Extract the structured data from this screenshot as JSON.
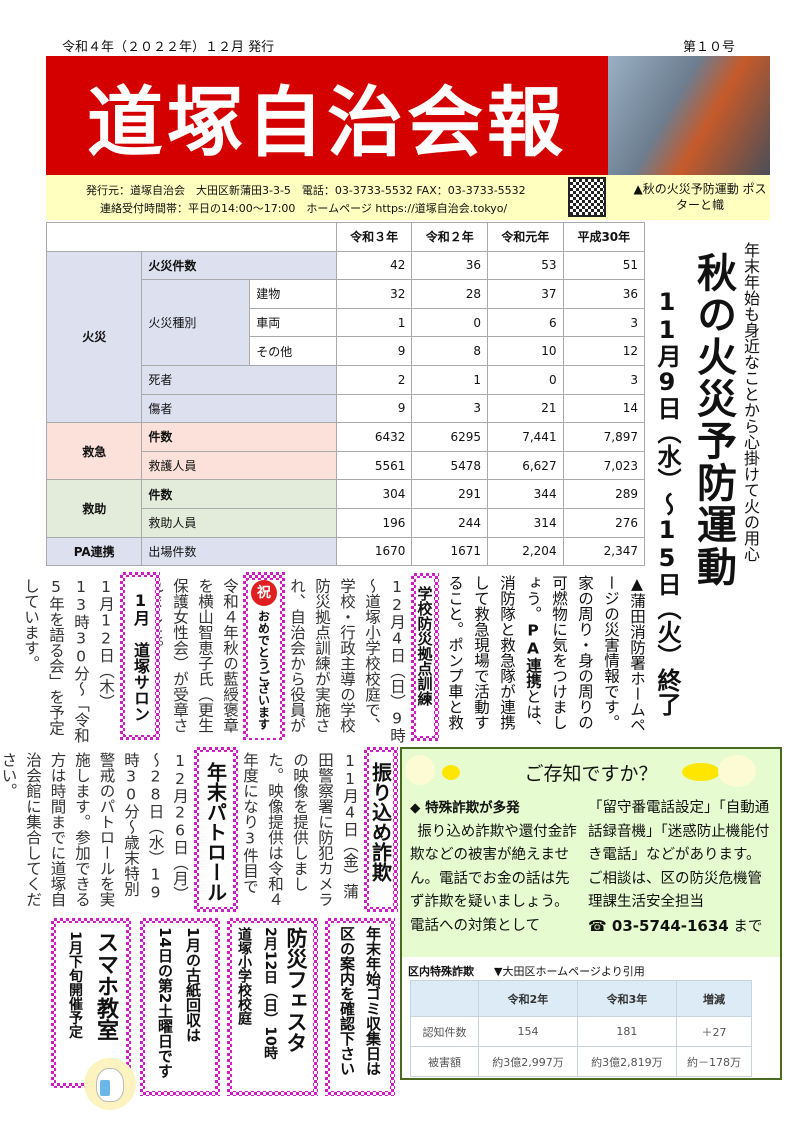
{
  "header": {
    "issue_date": "令和４年（２０２２年）１２月 発行",
    "issue_no": "第１０号",
    "title": "道塚自治会報",
    "photo_caption": "▲秋の火災予防運動 ポスターと幟",
    "info_line1": "発行元：道塚自治会　大田区新蒲田3-3-5　電話：03-3733-5532 FAX：03-3733-5532",
    "info_line2": "連絡受付時間帯：平日の14:00～17:00　ホームページ https://道塚自治会.tokyo/"
  },
  "fire_table": {
    "columns": [
      "令和３年",
      "令和２年",
      "令和元年",
      "平成30年"
    ],
    "rows": [
      {
        "cat": "火災",
        "sub": "火災件数",
        "sub2": "",
        "values": [
          "42",
          "36",
          "53",
          "51"
        ]
      },
      {
        "cat": "",
        "sub": "火災種別",
        "sub2": "建物",
        "values": [
          "32",
          "28",
          "37",
          "36"
        ]
      },
      {
        "cat": "",
        "sub": "",
        "sub2": "車両",
        "values": [
          "1",
          "0",
          "6",
          "3"
        ]
      },
      {
        "cat": "",
        "sub": "",
        "sub2": "その他",
        "values": [
          "9",
          "8",
          "10",
          "12"
        ]
      },
      {
        "cat": "",
        "sub": "死者",
        "sub2": "",
        "values": [
          "2",
          "1",
          "0",
          "3"
        ]
      },
      {
        "cat": "",
        "sub": "傷者",
        "sub2": "",
        "values": [
          "9",
          "3",
          "21",
          "14"
        ]
      },
      {
        "cat": "救急",
        "sub": "件数",
        "sub2": "",
        "values": [
          "6432",
          "6295",
          "7,441",
          "7,897"
        ]
      },
      {
        "cat": "",
        "sub": "救護人員",
        "sub2": "",
        "values": [
          "5561",
          "5478",
          "6,627",
          "7,023"
        ]
      },
      {
        "cat": "救助",
        "sub": "件数",
        "sub2": "",
        "values": [
          "304",
          "291",
          "344",
          "289"
        ]
      },
      {
        "cat": "",
        "sub": "救助人員",
        "sub2": "",
        "values": [
          "196",
          "244",
          "314",
          "276"
        ]
      },
      {
        "cat": "PA連携",
        "sub": "出場件数",
        "sub2": "",
        "values": [
          "1670",
          "1671",
          "2,204",
          "2,347"
        ]
      }
    ]
  },
  "fire_campaign": {
    "subtitle": "年末年始も身近なことから心掛けて火の用心",
    "title": "秋の火災予防運動",
    "dates": "11月9日（水）～15日（火）終了"
  },
  "articles": {
    "fire_note": "▲蒲田消防署ホームページの災害情報です。家の周り・身の周りの可燃物に気をつけましょう。",
    "pa_term": "PA連携",
    "pa_note": "とは、消防隊と救急隊が連携して救急現場で活動すること。ポンプ車と救急車の頭文字です。",
    "drill_title": "学校防災拠点訓練",
    "drill_body": "12月4日（日）9時～道塚小学校校庭で、学校・行政主導の学校防災拠点訓練が実施され、自治会から役員が参加しました。",
    "congrats_mark": "祝",
    "congrats_title": "おめでとうございます",
    "congrats_body": "令和４年秋の藍綬褒章を横山智恵子氏（更生保護女性会）が受章されました。",
    "salon_title": "1月　道塚サロン",
    "salon_body": "1月12日（木）13時30分～「令和5年を語る会」を予定しています。",
    "scam_title": "振り込め詐欺",
    "scam_body": "11月4日（金）蒲田警察署に防犯カメラの映像を提供しました。映像提供は令和４年度になり3件目です。",
    "patrol_title": "年末パトロール",
    "patrol_body": "12月26日（月）～28日（水）19時30分～歳末特別警戒のパトロールを実施します。参加できる方は時間までに道塚自治会館に集合してください。"
  },
  "notices": [
    {
      "line1": "年末年始ゴミ収集日は",
      "line2": "区の案内を確認下さい"
    },
    {
      "line1": "防災フェスタ",
      "line2": "2月12日（日）10時",
      "line3": "道塚小学校校庭"
    },
    {
      "line1": "1月の古紙回収は",
      "line2": "14日の第2土曜日です"
    },
    {
      "line1": "スマホ教室",
      "line2": "1月下旬開催予定"
    }
  ],
  "info_box": {
    "title": "ご存知ですか？",
    "heading": "◆ 特殊詐欺が多発",
    "left_text": "振り込め詐欺や還付金詐欺などの被害が絶えません。電話でお金の話は先ず詐欺を疑いましょう。　電話への対策として",
    "right_text": "「留守番電話設定」「自動通話録音機」「迷惑防止機能付き電話」などがあります。　ご相談は、区の防災危機管理課生活安全担当",
    "phone": "☎ 03-5744-1634",
    "phone_suffix": "まで",
    "table_title": "区内特殊詐欺",
    "table_source": "▼大田区ホームページより引用",
    "columns": [
      "",
      "令和2年",
      "令和3年",
      "増減"
    ],
    "rows": [
      [
        "認知件数",
        "154",
        "181",
        "＋27"
      ],
      [
        "被害額",
        "約3億2,997万",
        "約3億2,819万",
        "約－178万"
      ]
    ]
  },
  "colors": {
    "banner": "#d40000",
    "info_band": "#ffffc0",
    "fire_cat": "#dde0ee",
    "ems_cat": "#fbe1d9",
    "rescue_cat": "#e3ebdb",
    "box_bg": "#e6fbd0",
    "checker": "#d21cc8"
  }
}
